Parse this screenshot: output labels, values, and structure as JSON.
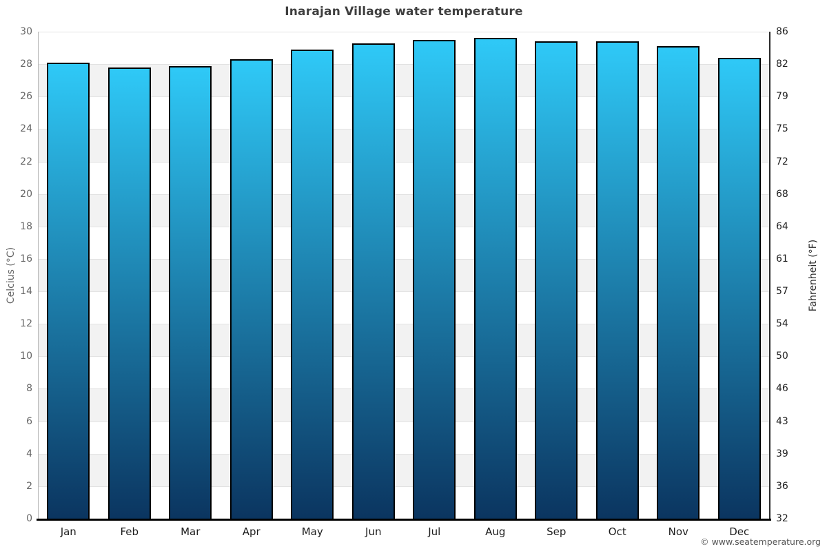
{
  "title": "Inarajan Village water temperature",
  "watermark": "© www.seatemperature.org",
  "chart_data": {
    "type": "bar",
    "title": "Inarajan Village water temperature",
    "categories": [
      "Jan",
      "Feb",
      "Mar",
      "Apr",
      "May",
      "Jun",
      "Jul",
      "Aug",
      "Sep",
      "Oct",
      "Nov",
      "Dec"
    ],
    "series": [
      {
        "name": "Water temperature",
        "unit": "°C",
        "values": [
          28.1,
          27.8,
          27.9,
          28.3,
          28.9,
          29.3,
          29.5,
          29.6,
          29.4,
          29.4,
          29.1,
          28.4
        ]
      }
    ],
    "ylabel_left": "Celcius (°C)",
    "ylabel_right": "Fahrenheit (°F)",
    "yticks_celsius": [
      30,
      28,
      26,
      24,
      22,
      20,
      18,
      16,
      14,
      12,
      10,
      8,
      6,
      4,
      2,
      0
    ],
    "yticks_fahrenheit": [
      86,
      82,
      79,
      75,
      72,
      68,
      64,
      61,
      57,
      54,
      50,
      46,
      43,
      39,
      36,
      32
    ],
    "ylim": [
      0,
      30
    ],
    "legend": "none",
    "grid": "alternating horizontal bands every 2°C",
    "band_color": "#f2f2f2",
    "band_line_color": "#e2e2e2",
    "bar_color_top": "#2fc9f7",
    "bar_color_bottom": "#0b3560",
    "bar_border_color": "#000000"
  }
}
